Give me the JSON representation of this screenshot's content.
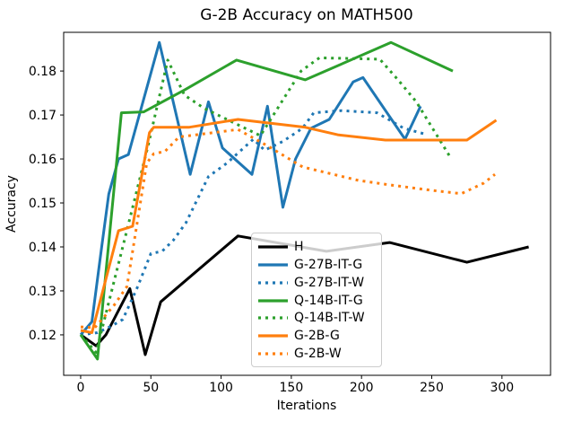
{
  "title": "G-2B Accuracy on MATH500",
  "axes": {
    "xlabel": "Iterations",
    "ylabel": "Accuracy",
    "x_ticks": [
      0,
      50,
      100,
      150,
      200,
      250,
      300
    ],
    "y_ticks": [
      0.12,
      0.13,
      0.14,
      0.15,
      0.16,
      0.17,
      0.18
    ],
    "xlim": [
      -12.1,
      334.6
    ],
    "ylim": [
      0.1108,
      0.1888
    ]
  },
  "colors": {
    "black": "#000000",
    "blue": "#1f77b4",
    "green": "#2ca02c",
    "orange": "#ff7f0e",
    "legend_border": "#cccccc",
    "background": "#ffffff"
  },
  "chart_data": {
    "type": "line",
    "xlabel": "Iterations",
    "ylabel": "Accuracy",
    "title": "G-2B Accuracy on MATH500",
    "legend_position": "center-left-below",
    "grid": false,
    "series": [
      {
        "name": "H",
        "color": "#000000",
        "style": "solid",
        "points": [
          [
            0,
            0.12
          ],
          [
            11,
            0.1175
          ],
          [
            18,
            0.12
          ],
          [
            35,
            0.1305
          ],
          [
            46,
            0.1155
          ],
          [
            57,
            0.1275
          ],
          [
            112,
            0.1425
          ],
          [
            175,
            0.139
          ],
          [
            220,
            0.141
          ],
          [
            275,
            0.1365
          ],
          [
            319,
            0.14
          ]
        ]
      },
      {
        "name": "G-27B-IT-G",
        "color": "#1f77b4",
        "style": "solid",
        "points": [
          [
            0,
            0.12
          ],
          [
            8,
            0.123
          ],
          [
            15,
            0.14
          ],
          [
            20,
            0.152
          ],
          [
            27,
            0.16
          ],
          [
            34,
            0.161
          ],
          [
            56,
            0.1865
          ],
          [
            78,
            0.1565
          ],
          [
            91,
            0.173
          ],
          [
            101,
            0.1625
          ],
          [
            122,
            0.1565
          ],
          [
            133,
            0.172
          ],
          [
            144,
            0.149
          ],
          [
            153,
            0.16
          ],
          [
            164,
            0.167
          ],
          [
            177,
            0.169
          ],
          [
            194,
            0.1775
          ],
          [
            201,
            0.1785
          ],
          [
            231,
            0.1645
          ],
          [
            242,
            0.172
          ]
        ]
      },
      {
        "name": "G-27B-IT-W",
        "color": "#1f77b4",
        "style": "dotted",
        "points": [
          [
            0,
            0.12
          ],
          [
            12,
            0.1205
          ],
          [
            22,
            0.122
          ],
          [
            30,
            0.1235
          ],
          [
            40,
            0.1305
          ],
          [
            50,
            0.1385
          ],
          [
            58,
            0.139
          ],
          [
            66,
            0.1415
          ],
          [
            75,
            0.1455
          ],
          [
            91,
            0.156
          ],
          [
            104,
            0.159
          ],
          [
            123,
            0.1645
          ],
          [
            131,
            0.162
          ],
          [
            144,
            0.164
          ],
          [
            158,
            0.167
          ],
          [
            166,
            0.1705
          ],
          [
            186,
            0.171
          ],
          [
            211,
            0.1705
          ],
          [
            230,
            0.167
          ],
          [
            247,
            0.1655
          ]
        ]
      },
      {
        "name": "Q-14B-IT-G",
        "color": "#2ca02c",
        "style": "solid",
        "points": [
          [
            0,
            0.12
          ],
          [
            12,
            0.1145
          ],
          [
            29,
            0.1705
          ],
          [
            45,
            0.1707
          ],
          [
            74,
            0.1757
          ],
          [
            111,
            0.1825
          ],
          [
            160,
            0.178
          ],
          [
            221,
            0.1865
          ],
          [
            265,
            0.18
          ]
        ]
      },
      {
        "name": "Q-14B-IT-W",
        "color": "#2ca02c",
        "style": "dotted",
        "points": [
          [
            0,
            0.12
          ],
          [
            11,
            0.116
          ],
          [
            30,
            0.14
          ],
          [
            48,
            0.163
          ],
          [
            62,
            0.1825
          ],
          [
            74,
            0.1745
          ],
          [
            88,
            0.1715
          ],
          [
            128,
            0.1653
          ],
          [
            157,
            0.18
          ],
          [
            170,
            0.183
          ],
          [
            213,
            0.1827
          ],
          [
            226,
            0.178
          ],
          [
            239,
            0.173
          ],
          [
            263,
            0.1605
          ]
        ]
      },
      {
        "name": "G-2B-G",
        "color": "#ff7f0e",
        "style": "solid",
        "points": [
          [
            0,
            0.121
          ],
          [
            8,
            0.1205
          ],
          [
            27,
            0.1437
          ],
          [
            37,
            0.1447
          ],
          [
            49,
            0.166
          ],
          [
            52,
            0.1672
          ],
          [
            77,
            0.1672
          ],
          [
            112,
            0.169
          ],
          [
            160,
            0.1672
          ],
          [
            183,
            0.1655
          ],
          [
            217,
            0.1643
          ],
          [
            275,
            0.1643
          ],
          [
            296,
            0.1688
          ]
        ]
      },
      {
        "name": "G-2B-W",
        "color": "#ff7f0e",
        "style": "dotted",
        "points": [
          [
            0,
            0.1218
          ],
          [
            10,
            0.1216
          ],
          [
            16,
            0.1238
          ],
          [
            24,
            0.1268
          ],
          [
            33,
            0.131
          ],
          [
            47,
            0.159
          ],
          [
            52,
            0.1612
          ],
          [
            60,
            0.1617
          ],
          [
            70,
            0.165
          ],
          [
            112,
            0.1667
          ],
          [
            134,
            0.1628
          ],
          [
            158,
            0.1582
          ],
          [
            185,
            0.1561
          ],
          [
            198,
            0.1551
          ],
          [
            220,
            0.1541
          ],
          [
            249,
            0.1529
          ],
          [
            271,
            0.1521
          ],
          [
            287,
            0.1545
          ],
          [
            295,
            0.1565
          ]
        ]
      }
    ]
  },
  "legend": {
    "entries": [
      "H",
      "G-27B-IT-G",
      "G-27B-IT-W",
      "Q-14B-IT-G",
      "Q-14B-IT-W",
      "G-2B-G",
      "G-2B-W"
    ]
  }
}
